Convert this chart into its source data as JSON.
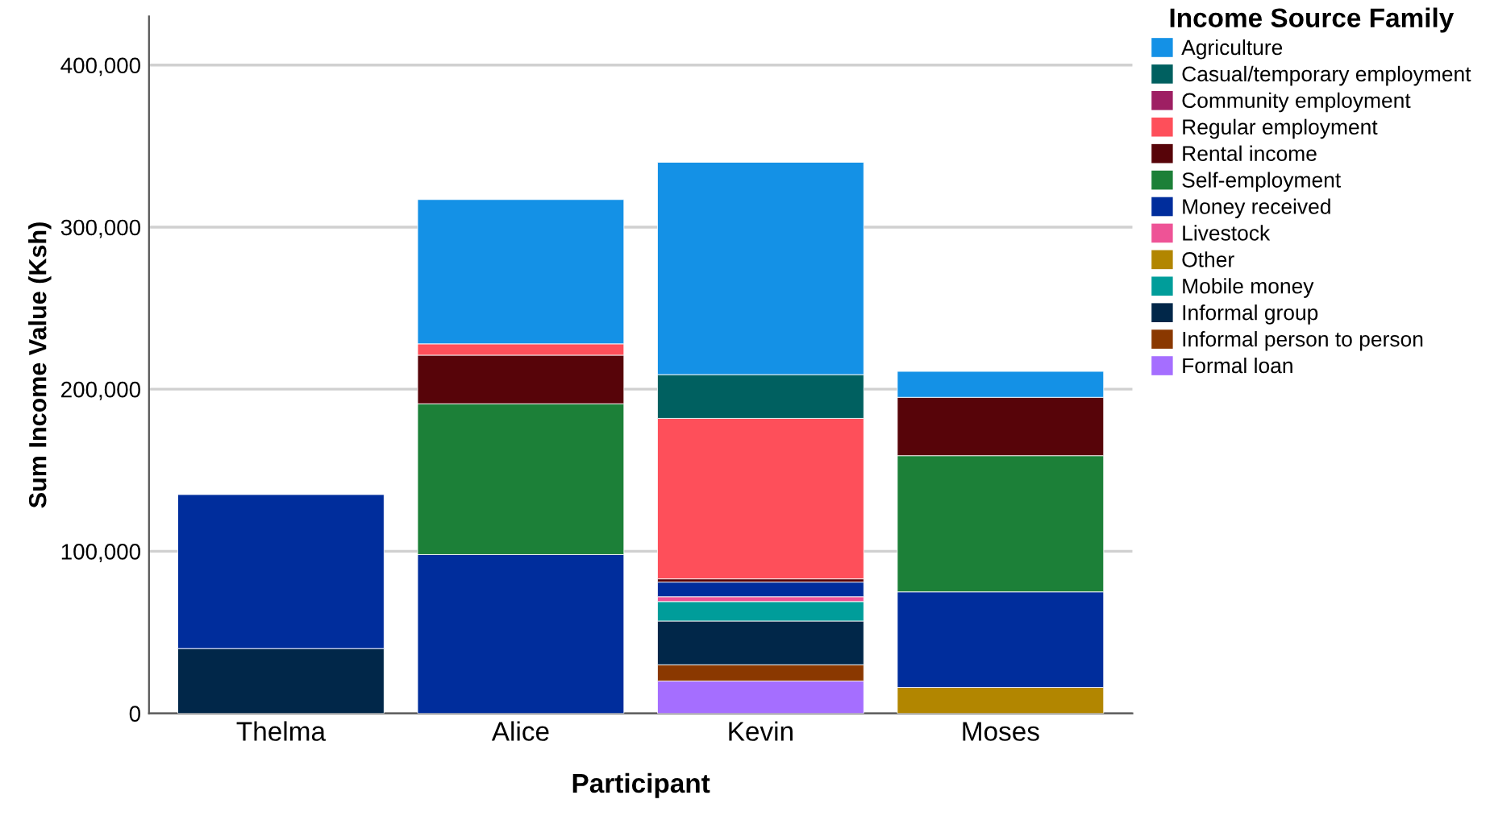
{
  "chart_data": {
    "type": "bar",
    "stacked": true,
    "xlabel": "Participant",
    "ylabel": "Sum Income Value (Ksh)",
    "legend_title": "Income Source Family",
    "legend": "top right",
    "grid": "y",
    "categories": [
      "Thelma",
      "Alice",
      "Kevin",
      "Moses"
    ],
    "ylim": [
      0,
      430000
    ],
    "yticks": [
      {
        "value": 0,
        "label": "0"
      },
      {
        "value": 100000,
        "label": "100,000"
      },
      {
        "value": 200000,
        "label": "200,000"
      },
      {
        "value": 300000,
        "label": "300,000"
      },
      {
        "value": 400000,
        "label": "400,000"
      }
    ],
    "series": [
      {
        "name": "Formal loan",
        "color": "#a56eff",
        "values": [
          null,
          null,
          20000,
          null
        ]
      },
      {
        "name": "Informal person to person",
        "color": "#8a3800",
        "values": [
          null,
          null,
          10000,
          null
        ]
      },
      {
        "name": "Informal group",
        "color": "#012749",
        "values": [
          40000,
          null,
          27000,
          null
        ]
      },
      {
        "name": "Mobile money",
        "color": "#009d9a",
        "values": [
          null,
          null,
          12000,
          null
        ]
      },
      {
        "name": "Other",
        "color": "#b28600",
        "values": [
          null,
          null,
          null,
          16000
        ]
      },
      {
        "name": "Livestock",
        "color": "#ee5396",
        "values": [
          null,
          null,
          3000,
          null
        ]
      },
      {
        "name": "Money received",
        "color": "#002d9c",
        "values": [
          95000,
          98000,
          9000,
          59000
        ]
      },
      {
        "name": "Self-employment",
        "color": "#1c8038",
        "values": [
          null,
          93000,
          null,
          84000
        ]
      },
      {
        "name": "Rental income",
        "color": "#570409",
        "values": [
          null,
          30000,
          2000,
          36000
        ]
      },
      {
        "name": "Regular employment",
        "color": "#fe4f5a",
        "values": [
          null,
          7000,
          99000,
          null
        ]
      },
      {
        "name": "Community employment",
        "color": "#9e1f63",
        "values": [
          null,
          null,
          null,
          null
        ]
      },
      {
        "name": "Casual/temporary employment",
        "color": "#006060",
        "values": [
          null,
          null,
          27000,
          null
        ]
      },
      {
        "name": "Agriculture",
        "color": "#1491e6",
        "values": [
          null,
          89000,
          131000,
          16000
        ]
      }
    ]
  }
}
